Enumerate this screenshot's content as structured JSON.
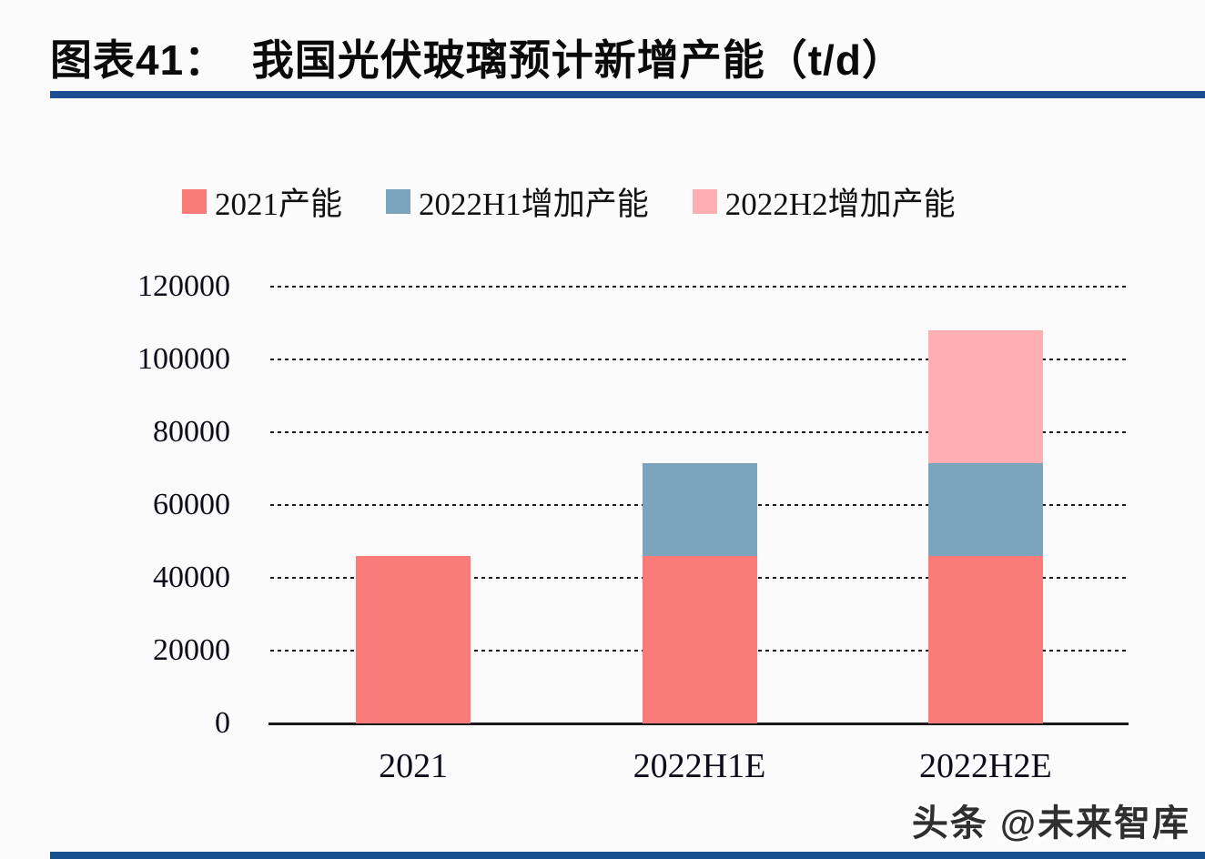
{
  "header": {
    "title": "图表41：  我国光伏玻璃预计新增产能（t/d）"
  },
  "watermark": {
    "text": "头条 @未来智库"
  },
  "theme": {
    "background": "#fbfbfb",
    "title_rule_color": "#1b4e93",
    "bottom_bar_color": "#17508f",
    "axis_color": "#1a1a1a",
    "label_color": "#0c0c1a"
  },
  "chart_data": {
    "type": "bar",
    "stacked": true,
    "title": "我国光伏玻璃预计新增产能（t/d）",
    "unit": "t/d",
    "categories": [
      "2021",
      "2022H1E",
      "2022H2E"
    ],
    "series": [
      {
        "name": "2021产能",
        "color": "#fb7a7a",
        "values": [
          46000,
          46000,
          46000
        ]
      },
      {
        "name": "2022H1增加产能",
        "color": "#7da4bd",
        "values": [
          0,
          25500,
          25500
        ]
      },
      {
        "name": "2022H2增加产能",
        "color": "#ffafb2",
        "values": [
          0,
          0,
          36500
        ]
      }
    ],
    "ylim": [
      0,
      120000
    ],
    "yticks": [
      0,
      20000,
      40000,
      60000,
      80000,
      100000,
      120000
    ],
    "grid": "dashed-horizontal",
    "legend_position": "top"
  }
}
